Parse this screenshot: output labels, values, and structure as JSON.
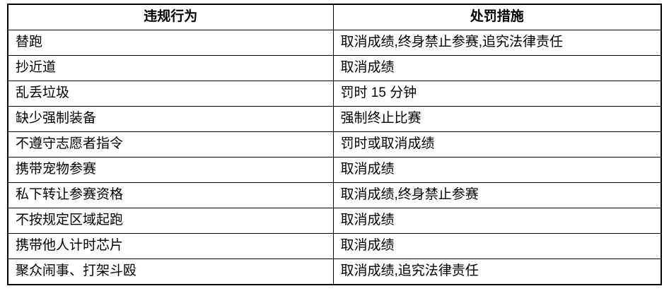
{
  "table": {
    "headers": [
      "违规行为",
      "处罚措施"
    ],
    "rows": [
      {
        "violation": "替跑",
        "penalty": "取消成绩,终身禁止参赛,追究法律责任"
      },
      {
        "violation": "抄近道",
        "penalty": "取消成绩"
      },
      {
        "violation": "乱丢垃圾",
        "penalty": "罚时 15 分钟"
      },
      {
        "violation": "缺少强制装备",
        "penalty": "强制终止比赛"
      },
      {
        "violation": "不遵守志愿者指令",
        "penalty": "罚时或取消成绩"
      },
      {
        "violation": "携带宠物参赛",
        "penalty": "取消成绩"
      },
      {
        "violation": "私下转让参赛资格",
        "penalty": "取消成绩,终身禁止参赛"
      },
      {
        "violation": "不按规定区域起跑",
        "penalty": "取消成绩"
      },
      {
        "violation": "携带他人计时芯片",
        "penalty": "取消成绩"
      },
      {
        "violation": "聚众闹事、打架斗殴",
        "penalty": "取消成绩,追究法律责任"
      }
    ],
    "colors": {
      "border": "#000000",
      "background": "#ffffff",
      "text": "#000000"
    }
  }
}
